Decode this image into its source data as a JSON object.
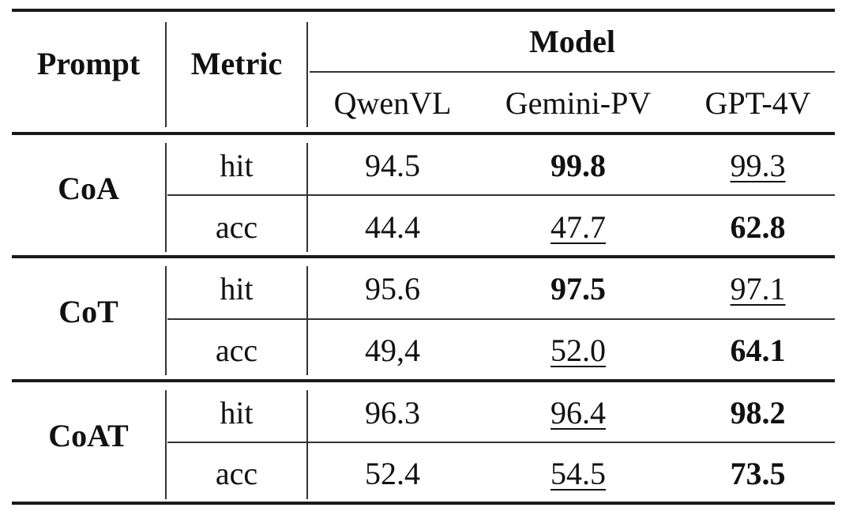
{
  "header": {
    "prompt": "Prompt",
    "metric": "Metric",
    "model": "Model",
    "models": [
      "QwenVL",
      "Gemini-PV",
      "GPT-4V"
    ]
  },
  "groups": [
    {
      "prompt": "CoA",
      "rows": [
        {
          "metric": "hit",
          "values": [
            "94.5",
            "99.8",
            "99.3"
          ],
          "styles": [
            "",
            "bold",
            "underline"
          ]
        },
        {
          "metric": "acc",
          "values": [
            "44.4",
            "47.7",
            "62.8"
          ],
          "styles": [
            "",
            "underline",
            "bold"
          ]
        }
      ]
    },
    {
      "prompt": "CoT",
      "rows": [
        {
          "metric": "hit",
          "values": [
            "95.6",
            "97.5",
            "97.1"
          ],
          "styles": [
            "",
            "bold",
            "underline"
          ]
        },
        {
          "metric": "acc",
          "values": [
            "49,4",
            "52.0",
            "64.1"
          ],
          "styles": [
            "",
            "underline",
            "bold"
          ]
        }
      ]
    },
    {
      "prompt": "CoAT",
      "rows": [
        {
          "metric": "hit",
          "values": [
            "96.3",
            "96.4",
            "98.2"
          ],
          "styles": [
            "",
            "underline",
            "bold"
          ]
        },
        {
          "metric": "acc",
          "values": [
            "52.4",
            "54.5",
            "73.5"
          ],
          "styles": [
            "",
            "underline",
            "bold"
          ]
        }
      ]
    }
  ]
}
